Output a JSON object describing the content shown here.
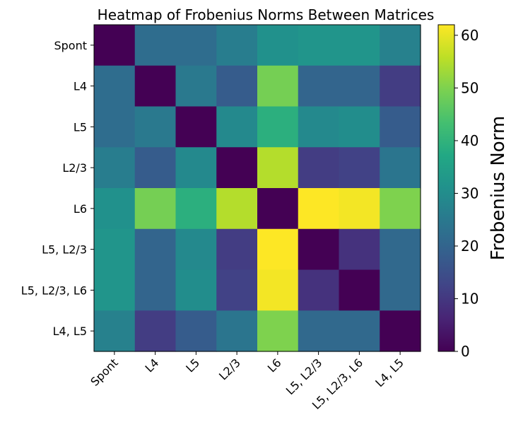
{
  "chart_data": {
    "type": "heatmap",
    "title": "Heatmap of Frobenius Norms Between Matrices",
    "x_categories": [
      "Spont",
      "L4",
      "L5",
      "L2/3",
      "L6",
      "L5, L2/3",
      "L5, L2/3, L6",
      "L4, L5"
    ],
    "y_categories": [
      "Spont",
      "L4",
      "L5",
      "L2/3",
      "L6",
      "L5, L2/3",
      "L5, L2/3, L6",
      "L4, L5"
    ],
    "values": [
      [
        0,
        22,
        22,
        26,
        31,
        32,
        32,
        27
      ],
      [
        22,
        0,
        25,
        18,
        49,
        20,
        20,
        11
      ],
      [
        22,
        25,
        0,
        29,
        39,
        29,
        30,
        18
      ],
      [
        26,
        18,
        29,
        0,
        55,
        11,
        12,
        24
      ],
      [
        31,
        49,
        39,
        55,
        0,
        62,
        61,
        50
      ],
      [
        32,
        20,
        29,
        11,
        62,
        0,
        9,
        21
      ],
      [
        32,
        20,
        30,
        12,
        61,
        9,
        0,
        21
      ],
      [
        27,
        11,
        18,
        24,
        50,
        21,
        21,
        0
      ]
    ],
    "colormap": "viridis",
    "colorbar": {
      "label": "Frobenius Norm",
      "range": [
        0,
        62
      ],
      "ticks": [
        0,
        10,
        20,
        30,
        40,
        50,
        60
      ]
    }
  }
}
